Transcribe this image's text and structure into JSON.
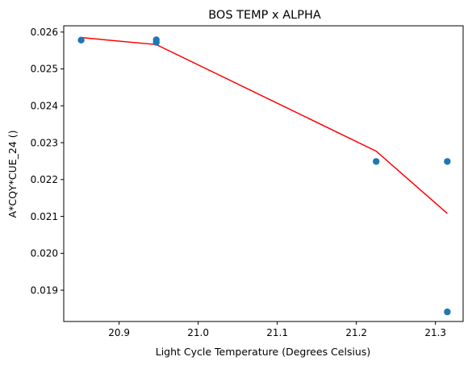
{
  "chart_data": {
    "type": "scatter",
    "title": "BOS TEMP x ALPHA",
    "xlabel": "Light Cycle Temperature (Degrees Celsius)",
    "ylabel": "A*CQY*CUE_24 ()",
    "xlim": [
      20.83,
      21.335
    ],
    "ylim": [
      0.01815,
      0.02617
    ],
    "xticks": [
      20.9,
      21.0,
      21.1,
      21.2,
      21.3
    ],
    "xtick_labels": [
      "20.9",
      "21.0",
      "21.1",
      "21.2",
      "21.3"
    ],
    "yticks": [
      0.019,
      0.02,
      0.021,
      0.022,
      0.023,
      0.024,
      0.025,
      0.026
    ],
    "ytick_labels": [
      "0.019",
      "0.020",
      "0.021",
      "0.022",
      "0.023",
      "0.024",
      "0.025",
      "0.026"
    ],
    "grid": false,
    "series": [
      {
        "kind": "scatter",
        "color": "#1f77b4",
        "x": [
          20.852,
          20.947,
          20.947,
          21.225,
          21.315,
          21.315
        ],
        "y": [
          0.02578,
          0.02579,
          0.02572,
          0.02249,
          0.02249,
          0.01841
        ]
      },
      {
        "kind": "line",
        "color": "#ff0000",
        "x": [
          20.852,
          20.947,
          21.225,
          21.315
        ],
        "y": [
          0.02585,
          0.02566,
          0.02277,
          0.02108
        ]
      }
    ]
  }
}
